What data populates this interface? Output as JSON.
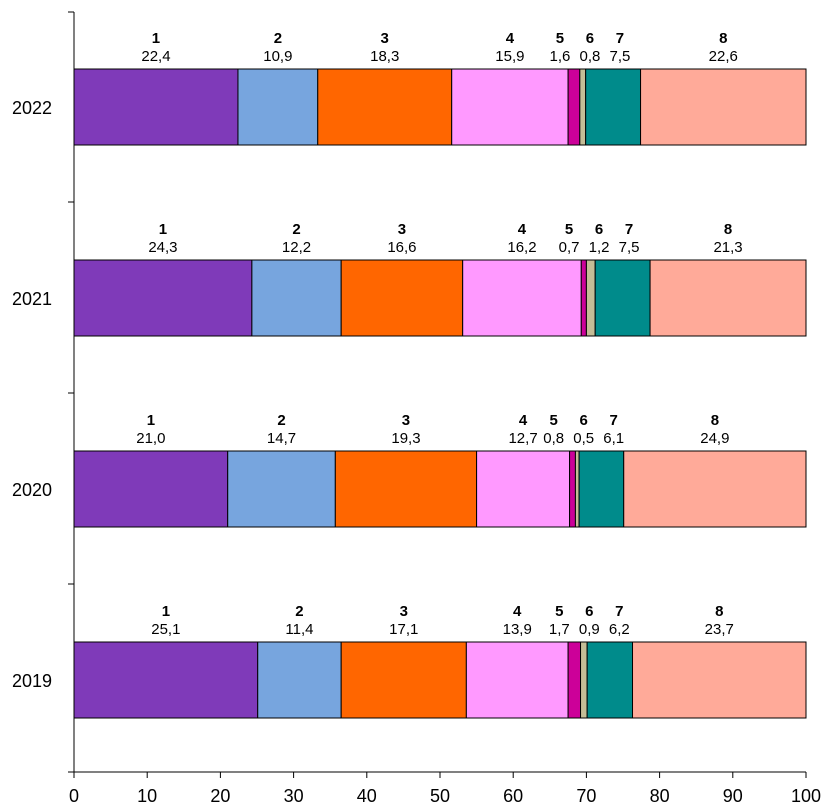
{
  "chart_data": {
    "type": "bar",
    "orientation": "horizontal",
    "stacked": true,
    "xlim": [
      0,
      100
    ],
    "x_ticks": [
      "0",
      "10",
      "20",
      "30",
      "40",
      "50",
      "60",
      "70",
      "80",
      "90",
      "100"
    ],
    "categories": [
      "2022",
      "2021",
      "2020",
      "2019"
    ],
    "segment_numbers": [
      "1",
      "2",
      "3",
      "4",
      "5",
      "6",
      "7",
      "8"
    ],
    "colors": [
      "#7F3AB9",
      "#77A5DE",
      "#FF6600",
      "#FF99FF",
      "#CC0099",
      "#C4BD97",
      "#008B8B",
      "#FFAA99"
    ],
    "values": [
      [
        22.4,
        10.9,
        18.3,
        15.9,
        1.6,
        0.8,
        7.5,
        22.6
      ],
      [
        24.3,
        12.2,
        16.6,
        16.2,
        0.7,
        1.2,
        7.5,
        21.3
      ],
      [
        21.0,
        14.7,
        19.3,
        12.7,
        0.8,
        0.5,
        6.1,
        24.9
      ],
      [
        25.1,
        11.4,
        17.1,
        13.9,
        1.7,
        0.9,
        6.2,
        23.7
      ]
    ],
    "value_labels": [
      [
        "22,4",
        "10,9",
        "18,3",
        "15,9",
        "1,6",
        "0,8",
        "7,5",
        "22,6"
      ],
      [
        "24,3",
        "12,2",
        "16,6",
        "16,2",
        "0,7",
        "1,2",
        "7,5",
        "21,3"
      ],
      [
        "21,0",
        "14,7",
        "19,3",
        "12,7",
        "0,8",
        "0,5",
        "6,1",
        "24,9"
      ],
      [
        "25,1",
        "11,4",
        "17,1",
        "13,9",
        "1,7",
        "0,9",
        "6,2",
        "23,7"
      ]
    ],
    "grid": false,
    "legend": "none"
  }
}
